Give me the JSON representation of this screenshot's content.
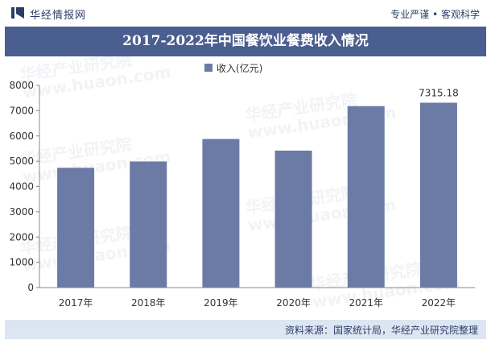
{
  "header": {
    "brand": "华经情报网",
    "tagline": "专业严谨 • 客观科学"
  },
  "chart_data": {
    "type": "bar",
    "title": "2017-2022年中国餐饮业餐费收入情况",
    "categories": [
      "2017年",
      "2018年",
      "2019年",
      "2020年",
      "2021年",
      "2022年"
    ],
    "series": [
      {
        "name": "收入(亿元)",
        "values": [
          4740,
          4990,
          5880,
          5420,
          7180,
          7315.18
        ]
      }
    ],
    "data_labels": [
      "",
      "",
      "",
      "",
      "",
      "7315.18"
    ],
    "yticks": [
      "0",
      "1000",
      "2000",
      "3000",
      "4000",
      "5000",
      "6000",
      "7000",
      "8000"
    ],
    "ylim": [
      0,
      8000
    ],
    "xlabel": "",
    "ylabel": "",
    "grid": false,
    "legend": "top-center",
    "bar_color": "#6b7ba6"
  },
  "footer": {
    "source": "资料来源：国家统计局，华经产业研究院整理"
  },
  "watermark": {
    "lines": [
      "华经产业研究院",
      "www.huaon.com"
    ]
  }
}
